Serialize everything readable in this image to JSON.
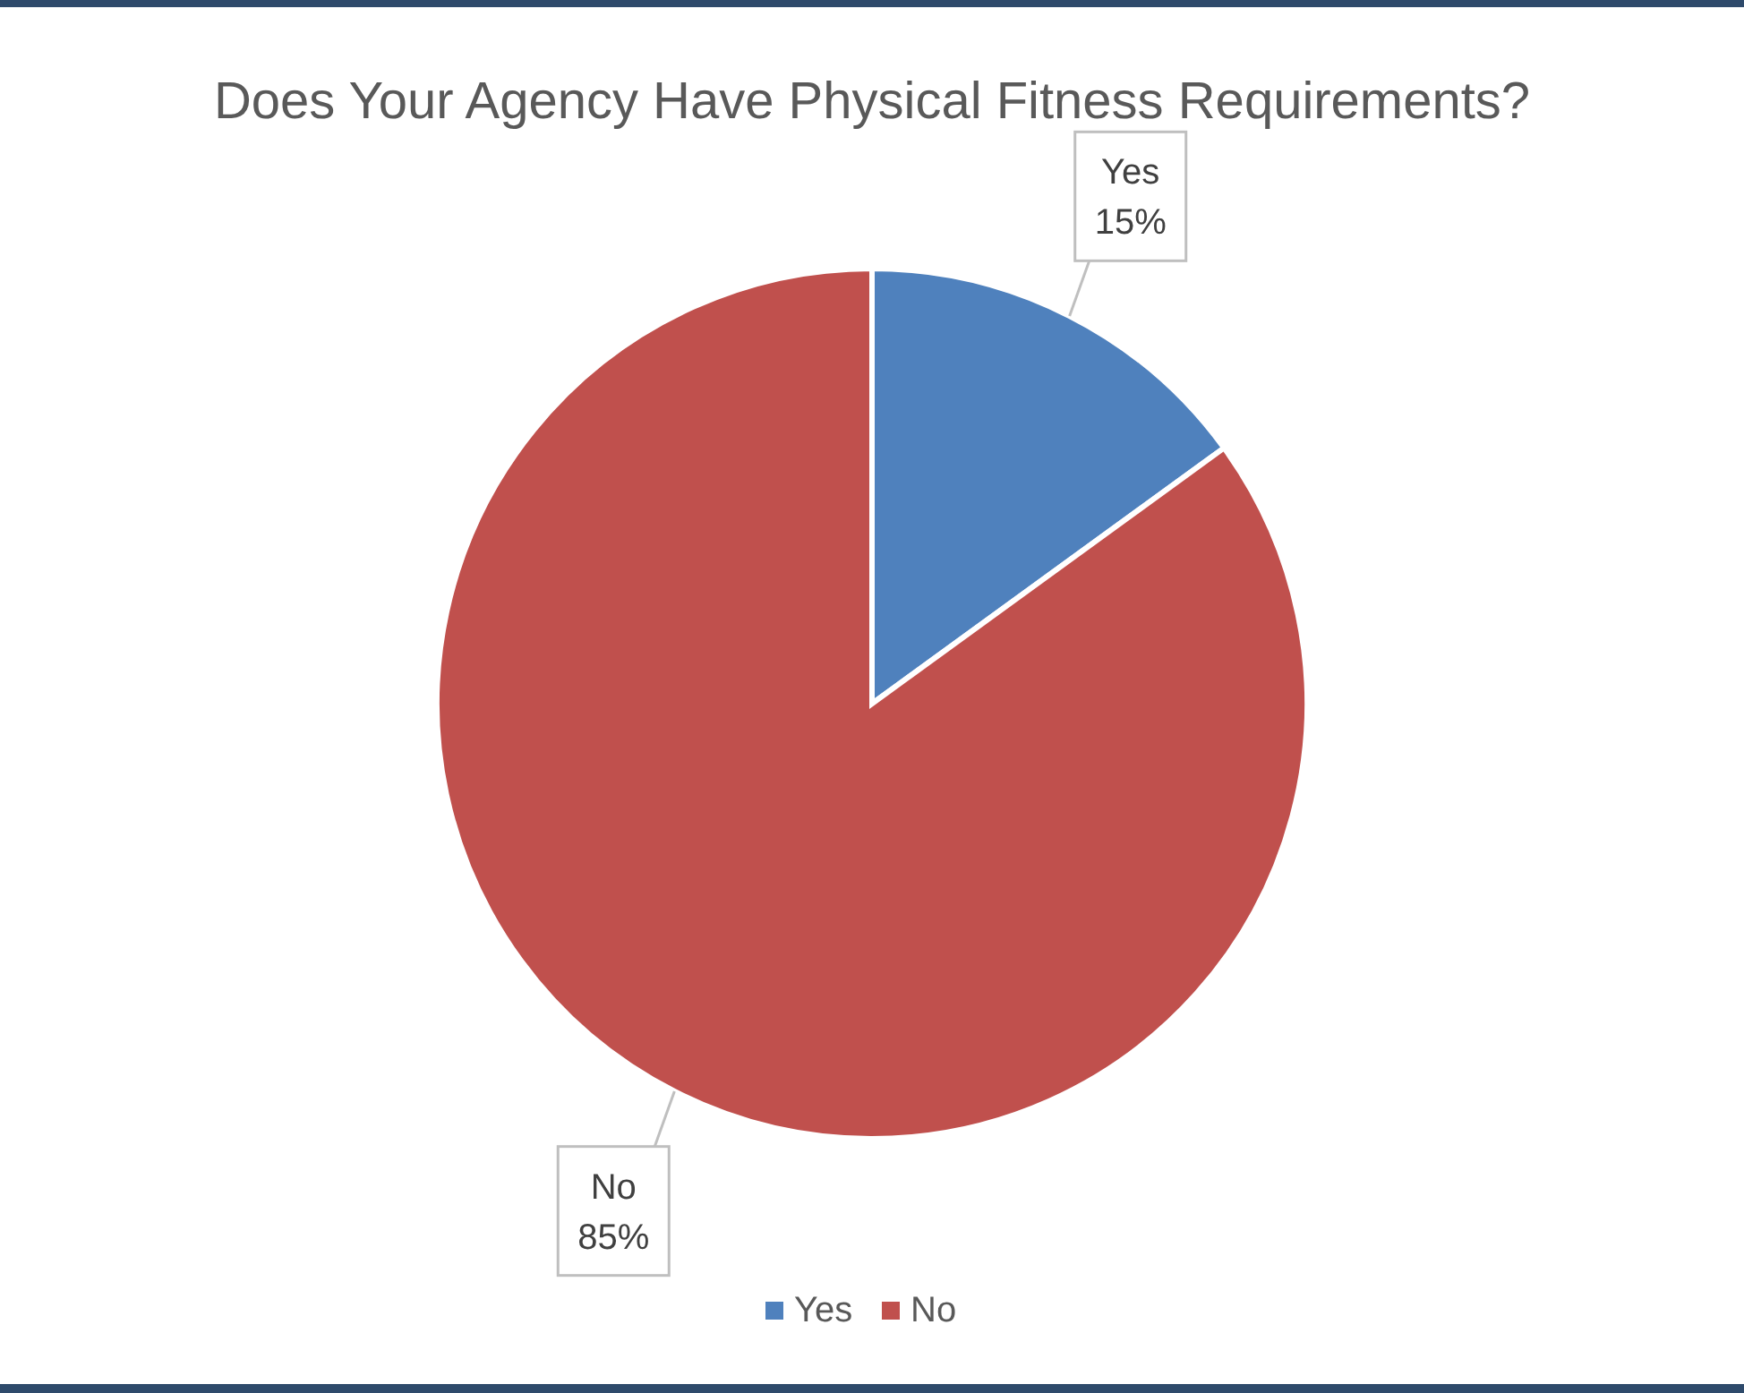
{
  "chart_data": {
    "type": "pie",
    "title": "Does Your Agency Have Physical Fitness Requirements?",
    "categories": [
      "Yes",
      "No"
    ],
    "values": [
      15,
      85
    ],
    "value_labels": [
      "15%",
      "85%"
    ],
    "colors": [
      "#4f81bd",
      "#c0504d"
    ],
    "legend": "bottom"
  }
}
